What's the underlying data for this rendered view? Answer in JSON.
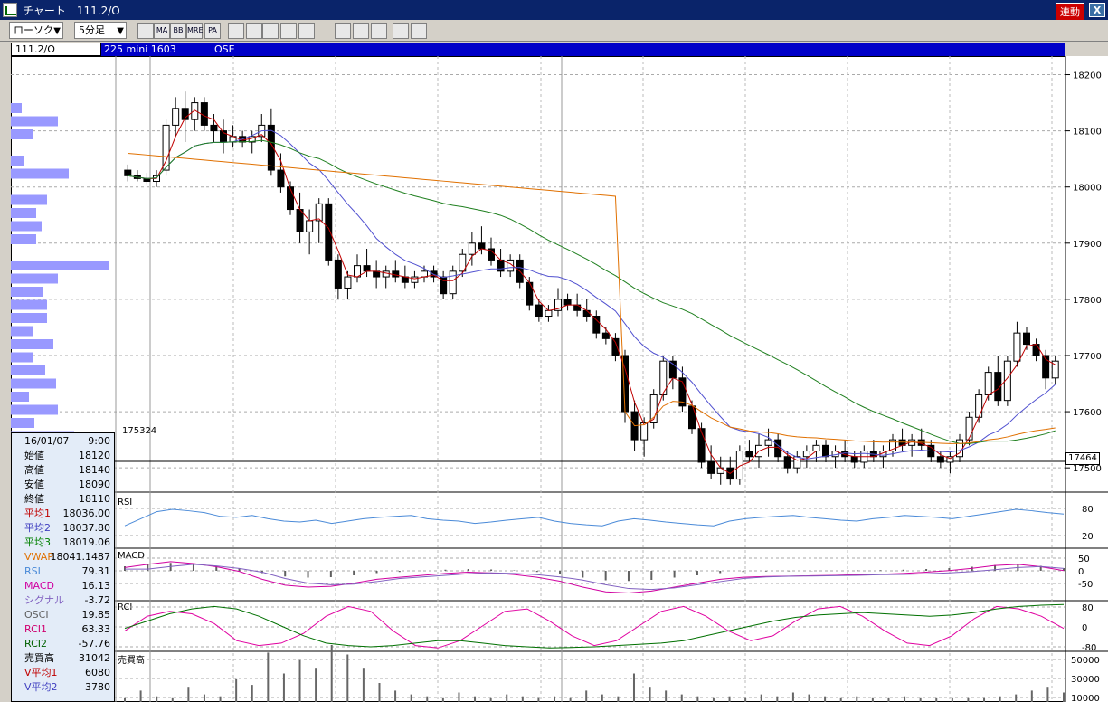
{
  "window": {
    "title": "チャート　111.2/O",
    "link_label": "連動",
    "close_label": "X"
  },
  "toolbar": {
    "chart_type": "ローソク",
    "interval": "5分足",
    "icons": [
      "window-icon",
      "ma-icon",
      "bb-icon",
      "mre-icon",
      "pa-icon",
      "line-chart-icon",
      "cursor-cross-icon",
      "zoom-icon",
      "settings-icon",
      "grid-icon",
      "pencil-icon",
      "pointer-icon",
      "eraser-icon",
      "gear-icon",
      "fib-icon"
    ],
    "icon_labels": [
      "",
      "MA",
      "BB",
      "MRE",
      "PA",
      "",
      "",
      "",
      "",
      "",
      "",
      "",
      "",
      "",
      ""
    ]
  },
  "instrument": {
    "code": "111.2/O",
    "symbol": "225 mini 1603",
    "exchange": "OSE"
  },
  "price_axis": {
    "ticks": [
      "18200",
      "18100",
      "18000",
      "17900",
      "17800",
      "17700",
      "17600",
      "17500"
    ],
    "last_price": "17464",
    "crosshair_price": "175324"
  },
  "rsi_panel": {
    "label": "RSI",
    "ticks": [
      "80",
      "20"
    ]
  },
  "macd_panel": {
    "label": "MACD",
    "ticks": [
      "50",
      "0",
      "-50"
    ]
  },
  "rci_panel": {
    "label": "RCI",
    "ticks": [
      "80",
      "0",
      "-80"
    ]
  },
  "volume_panel": {
    "label": "売買高",
    "ticks": [
      "50000",
      "30000",
      "10000"
    ]
  },
  "info": {
    "date": "16/01/07",
    "time": "9:00",
    "rows": [
      {
        "label": "始値",
        "value": "18120",
        "color": "#000000"
      },
      {
        "label": "高値",
        "value": "18140",
        "color": "#000000"
      },
      {
        "label": "安値",
        "value": "18090",
        "color": "#000000"
      },
      {
        "label": "終値",
        "value": "18110",
        "color": "#000000"
      },
      {
        "label": "平均1",
        "value": "18036.00",
        "color": "#c00000"
      },
      {
        "label": "平均2",
        "value": "18037.80",
        "color": "#4040c0"
      },
      {
        "label": "平均3",
        "value": "18019.06",
        "color": "#008000"
      },
      {
        "label": "VWAP",
        "value": "18041.1487",
        "color": "#e07000"
      },
      {
        "label": "RSI",
        "value": "79.31",
        "color": "#4a8ad8"
      },
      {
        "label": "MACD",
        "value": "16.13",
        "color": "#d000a0"
      },
      {
        "label": "シグナル",
        "value": "-3.72",
        "color": "#8060c0"
      },
      {
        "label": "OSCI",
        "value": "19.85",
        "color": "#606060"
      },
      {
        "label": "RCI1",
        "value": "63.33",
        "color": "#d00070"
      },
      {
        "label": "RCI2",
        "value": "-57.76",
        "color": "#006000"
      },
      {
        "label": "売買高",
        "value": "31042",
        "color": "#000000"
      },
      {
        "label": "V平均1",
        "value": "6080",
        "color": "#c00000"
      },
      {
        "label": "V平均2",
        "value": "3780",
        "color": "#4040c0"
      }
    ]
  },
  "colors": {
    "ma1": "#c00000",
    "ma2": "#5050d0",
    "ma3": "#208020",
    "vwap": "#e07000",
    "rsi": "#4a8ad8",
    "macd": "#d000a0",
    "signal": "#8060c0",
    "rci1": "#e000a0",
    "rci2": "#007000",
    "profile": "#9999ff"
  },
  "chart_data": {
    "type": "candlestick",
    "ylim": [
      17460,
      18225
    ],
    "candles": [
      [
        18030,
        18040,
        18010,
        18020
      ],
      [
        18020,
        18030,
        18010,
        18015
      ],
      [
        18015,
        18025,
        18005,
        18010
      ],
      [
        18010,
        18030,
        18000,
        18020
      ],
      [
        18030,
        18120,
        18020,
        18110
      ],
      [
        18110,
        18160,
        18090,
        18140
      ],
      [
        18140,
        18170,
        18080,
        18120
      ],
      [
        18120,
        18160,
        18100,
        18150
      ],
      [
        18150,
        18160,
        18100,
        18110
      ],
      [
        18110,
        18130,
        18080,
        18100
      ],
      [
        18100,
        18120,
        18060,
        18080
      ],
      [
        18080,
        18110,
        18070,
        18090
      ],
      [
        18090,
        18100,
        18070,
        18080
      ],
      [
        18080,
        18100,
        18060,
        18090
      ],
      [
        18090,
        18130,
        18080,
        18110
      ],
      [
        18110,
        18140,
        18020,
        18030
      ],
      [
        18030,
        18060,
        17990,
        18000
      ],
      [
        18000,
        18010,
        17950,
        17960
      ],
      [
        17960,
        17990,
        17900,
        17920
      ],
      [
        17920,
        17960,
        17880,
        17940
      ],
      [
        17940,
        17980,
        17900,
        17970
      ],
      [
        17970,
        17980,
        17860,
        17870
      ],
      [
        17870,
        17880,
        17800,
        17820
      ],
      [
        17820,
        17850,
        17800,
        17840
      ],
      [
        17840,
        17880,
        17830,
        17860
      ],
      [
        17860,
        17890,
        17840,
        17850
      ],
      [
        17850,
        17870,
        17820,
        17840
      ],
      [
        17840,
        17860,
        17820,
        17850
      ],
      [
        17850,
        17870,
        17830,
        17840
      ],
      [
        17840,
        17860,
        17820,
        17830
      ],
      [
        17830,
        17850,
        17820,
        17840
      ],
      [
        17840,
        17860,
        17830,
        17850
      ],
      [
        17850,
        17860,
        17830,
        17840
      ],
      [
        17840,
        17850,
        17800,
        17810
      ],
      [
        17810,
        17860,
        17800,
        17850
      ],
      [
        17850,
        17890,
        17840,
        17880
      ],
      [
        17880,
        17920,
        17860,
        17900
      ],
      [
        17900,
        17930,
        17880,
        17890
      ],
      [
        17890,
        17910,
        17860,
        17870
      ],
      [
        17870,
        17890,
        17840,
        17850
      ],
      [
        17850,
        17880,
        17840,
        17870
      ],
      [
        17870,
        17880,
        17820,
        17830
      ],
      [
        17830,
        17840,
        17780,
        17790
      ],
      [
        17790,
        17800,
        17760,
        17770
      ],
      [
        17770,
        17790,
        17760,
        17780
      ],
      [
        17780,
        17820,
        17770,
        17800
      ],
      [
        17800,
        17810,
        17780,
        17790
      ],
      [
        17790,
        17810,
        17770,
        17780
      ],
      [
        17780,
        17800,
        17760,
        17770
      ],
      [
        17770,
        17780,
        17730,
        17740
      ],
      [
        17740,
        17750,
        17720,
        17730
      ],
      [
        17730,
        17740,
        17690,
        17700
      ],
      [
        17700,
        17710,
        17580,
        17600
      ],
      [
        17600,
        17620,
        17530,
        17550
      ],
      [
        17550,
        17590,
        17520,
        17580
      ],
      [
        17580,
        17640,
        17570,
        17630
      ],
      [
        17630,
        17700,
        17620,
        17690
      ],
      [
        17690,
        17700,
        17640,
        17660
      ],
      [
        17660,
        17680,
        17600,
        17610
      ],
      [
        17610,
        17620,
        17560,
        17570
      ],
      [
        17570,
        17580,
        17500,
        17510
      ],
      [
        17510,
        17540,
        17480,
        17490
      ],
      [
        17490,
        17520,
        17470,
        17500
      ],
      [
        17500,
        17520,
        17470,
        17480
      ],
      [
        17480,
        17540,
        17470,
        17530
      ],
      [
        17530,
        17550,
        17510,
        17520
      ],
      [
        17520,
        17560,
        17500,
        17540
      ],
      [
        17540,
        17570,
        17520,
        17550
      ],
      [
        17550,
        17560,
        17510,
        17520
      ],
      [
        17520,
        17530,
        17490,
        17500
      ],
      [
        17500,
        17530,
        17490,
        17520
      ],
      [
        17520,
        17540,
        17500,
        17530
      ],
      [
        17530,
        17550,
        17510,
        17540
      ],
      [
        17540,
        17550,
        17510,
        17520
      ],
      [
        17520,
        17540,
        17500,
        17530
      ],
      [
        17530,
        17550,
        17510,
        17520
      ],
      [
        17520,
        17530,
        17500,
        17510
      ],
      [
        17510,
        17540,
        17500,
        17530
      ],
      [
        17530,
        17550,
        17510,
        17520
      ],
      [
        17520,
        17540,
        17500,
        17530
      ],
      [
        17530,
        17560,
        17520,
        17550
      ],
      [
        17550,
        17570,
        17530,
        17540
      ],
      [
        17540,
        17560,
        17520,
        17550
      ],
      [
        17550,
        17570,
        17530,
        17540
      ],
      [
        17540,
        17550,
        17510,
        17520
      ],
      [
        17520,
        17530,
        17500,
        17510
      ],
      [
        17510,
        17530,
        17490,
        17520
      ],
      [
        17520,
        17560,
        17510,
        17550
      ],
      [
        17550,
        17600,
        17540,
        17590
      ],
      [
        17590,
        17640,
        17580,
        17630
      ],
      [
        17630,
        17680,
        17620,
        17670
      ],
      [
        17670,
        17700,
        17610,
        17620
      ],
      [
        17620,
        17700,
        17610,
        17690
      ],
      [
        17690,
        17760,
        17680,
        17740
      ],
      [
        17740,
        17750,
        17710,
        17720
      ],
      [
        17720,
        17730,
        17690,
        17700
      ],
      [
        17700,
        17710,
        17640,
        17660
      ],
      [
        17660,
        17700,
        17650,
        17690
      ]
    ],
    "rsi": [
      40,
      55,
      70,
      75,
      72,
      68,
      60,
      58,
      62,
      55,
      50,
      48,
      52,
      45,
      50,
      55,
      58,
      60,
      62,
      55,
      52,
      50,
      45,
      48,
      52,
      55,
      58,
      50,
      45,
      42,
      40,
      50,
      55,
      52,
      48,
      45,
      42,
      40,
      50,
      55,
      58,
      60,
      62,
      58,
      55,
      52,
      50,
      55,
      58,
      62,
      60,
      58,
      55,
      60,
      65,
      70,
      75,
      72,
      68,
      65
    ],
    "macd": [
      20,
      28,
      35,
      30,
      22,
      10,
      -10,
      -25,
      -30,
      -28,
      -20,
      -10,
      -5,
      0,
      5,
      8,
      6,
      2,
      -5,
      -15,
      -30,
      -42,
      -45,
      -40,
      -30,
      -20,
      -10,
      -5,
      -3,
      -2,
      -1,
      0,
      2,
      3,
      5,
      8,
      12,
      18,
      25,
      28,
      22,
      12
    ],
    "rci1": [
      -20,
      40,
      60,
      50,
      10,
      -60,
      -80,
      -70,
      -30,
      40,
      80,
      60,
      -20,
      -80,
      -90,
      -60,
      0,
      60,
      70,
      20,
      -40,
      -80,
      -60,
      0,
      60,
      80,
      40,
      -20,
      -60,
      -40,
      20,
      70,
      80,
      40,
      -20,
      -70,
      -80,
      -40,
      30,
      80,
      70,
      40,
      -10
    ],
    "rci2": [
      -10,
      20,
      50,
      70,
      80,
      70,
      40,
      0,
      -40,
      -70,
      -80,
      -85,
      -80,
      -70,
      -60,
      -60,
      -70,
      -80,
      -85,
      -90,
      -88,
      -85,
      -80,
      -75,
      -70,
      -60,
      -40,
      -20,
      0,
      20,
      35,
      45,
      50,
      55,
      50,
      45,
      40,
      45,
      55,
      70,
      80,
      85,
      88
    ],
    "volume": [
      2000,
      6000,
      3000,
      2000,
      8000,
      4000,
      3000,
      12000,
      9000,
      26000,
      15000,
      22000,
      18000,
      30000,
      25000,
      18000,
      10000,
      6000,
      4000,
      3000,
      2000,
      5000,
      3000,
      2000,
      4000,
      3000,
      2000,
      3000,
      2000,
      6000,
      4000,
      3000,
      15000,
      8000,
      6000,
      4000,
      3000,
      2000,
      3000,
      2000,
      4000,
      3000,
      5000,
      4000,
      3000,
      2000,
      3000,
      2000,
      2000,
      3000,
      2000,
      2000,
      2000,
      2000,
      2000,
      3000,
      4000,
      6000,
      8000,
      5000
    ]
  }
}
